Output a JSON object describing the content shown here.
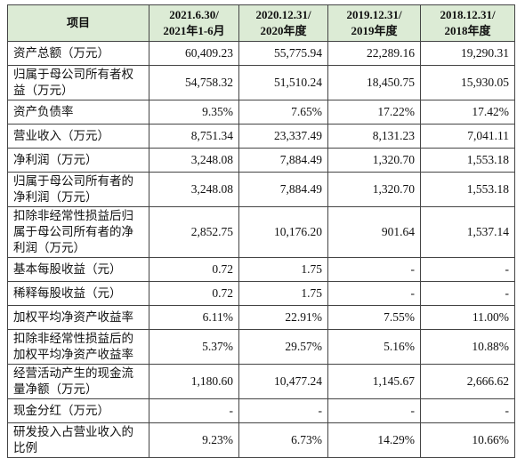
{
  "table": {
    "header": [
      [
        "项目"
      ],
      [
        "2021.6.30/",
        "2021年1-6月"
      ],
      [
        "2020.12.31/",
        "2020年度"
      ],
      [
        "2019.12.31/",
        "2019年度"
      ],
      [
        "2018.12.31/",
        "2018年度"
      ]
    ],
    "rows": [
      [
        "资产总额（万元）",
        "60,409.23",
        "55,775.94",
        "22,289.16",
        "19,290.31"
      ],
      [
        "归属于母公司所有者权益（万元）",
        "54,758.32",
        "51,510.24",
        "18,450.75",
        "15,930.05"
      ],
      [
        "资产负债率",
        "9.35%",
        "7.65%",
        "17.22%",
        "17.42%"
      ],
      [
        "营业收入（万元）",
        "8,751.34",
        "23,337.49",
        "8,131.23",
        "7,041.11"
      ],
      [
        "净利润（万元）",
        "3,248.08",
        "7,884.49",
        "1,320.70",
        "1,553.18"
      ],
      [
        "归属于母公司所有者的净利润（万元）",
        "3,248.08",
        "7,884.49",
        "1,320.70",
        "1,553.18"
      ],
      [
        "扣除非经常性损益后归属于母公司所有者的净利润（万元）",
        "2,852.75",
        "10,176.20",
        "901.64",
        "1,537.14"
      ],
      [
        "基本每股收益（元）",
        "0.72",
        "1.75",
        "-",
        "-"
      ],
      [
        "稀释每股收益（元）",
        "0.72",
        "1.75",
        "-",
        "-"
      ],
      [
        "加权平均净资产收益率",
        "6.11%",
        "22.91%",
        "7.55%",
        "11.00%"
      ],
      [
        "扣除非经常性损益后的加权平均净资产收益率",
        "5.37%",
        "29.57%",
        "5.16%",
        "10.88%"
      ],
      [
        "经营活动产生的现金流量净额（万元）",
        "1,180.60",
        "10,477.24",
        "1,145.67",
        "2,666.62"
      ],
      [
        "现金分红（万元）",
        "-",
        "-",
        "-",
        "-"
      ],
      [
        "研发投入占营业收入的比例",
        "9.23%",
        "6.73%",
        "14.29%",
        "10.66%"
      ]
    ]
  }
}
